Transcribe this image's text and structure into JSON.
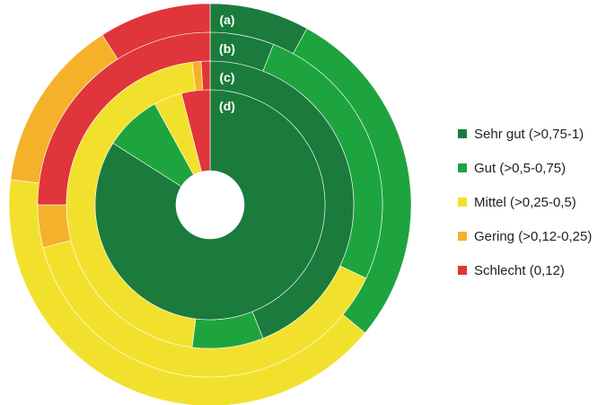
{
  "chart_data": {
    "type": "pie",
    "title": "",
    "categories": [
      "Sehr gut (>0,75-1)",
      "Gut (>0,5-0,75)",
      "Mittel (>0,25-0,5)",
      "Gering (>0,12-0,25)",
      "Schlecht (0,12)"
    ],
    "colors": [
      "#1a7b3c",
      "#1ea43e",
      "#f2e12c",
      "#f5b12a",
      "#e0353a"
    ],
    "series": [
      {
        "name": "(a)",
        "values": [
          8,
          28,
          41,
          14,
          9
        ]
      },
      {
        "name": "(b)",
        "values": [
          6,
          26,
          39,
          4,
          25
        ]
      },
      {
        "name": "(c)",
        "values": [
          44,
          8,
          46,
          1,
          1
        ]
      },
      {
        "name": "(d)",
        "values": [
          84,
          8,
          4,
          0,
          4
        ]
      }
    ],
    "legend_position": "right"
  }
}
